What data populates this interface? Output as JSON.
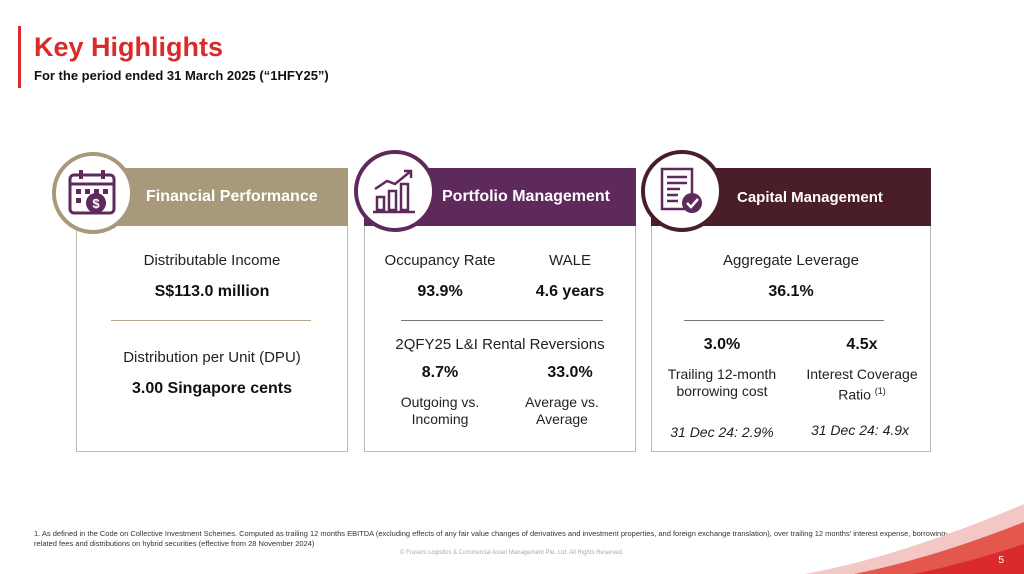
{
  "header": {
    "title": "Key Highlights",
    "subtitle": "For the period ended 31 March 2025 (“1HFY25”)"
  },
  "colors": {
    "brand_red": "#d92b2b",
    "financial": "#a8997a",
    "portfolio": "#5e2a5c",
    "capital": "#4a1e28"
  },
  "financial": {
    "icon": "calendar-dollar-icon",
    "header": "Financial Performance",
    "income_label": "Distributable Income",
    "income_value": "S$113.0 million",
    "dpu_label": "Distribution per Unit (DPU)",
    "dpu_value": "3.00 Singapore cents"
  },
  "portfolio": {
    "icon": "bar-chart-growth-icon",
    "header": "Portfolio Management",
    "occupancy_label": "Occupancy Rate",
    "occupancy_value": "93.9%",
    "wale_label": "WALE",
    "wale_value": "4.6 years",
    "reversions_title": "2QFY25 L&I Rental Reversions",
    "reversion1_value": "8.7%",
    "reversion1_line1": "Outgoing vs.",
    "reversion1_line2": "Incoming",
    "reversion2_value": "33.0%",
    "reversion2_line1": "Average vs.",
    "reversion2_line2": "Average"
  },
  "capital": {
    "icon": "document-check-icon",
    "header": "Capital Management",
    "leverage_label": "Aggregate Leverage",
    "leverage_value": "36.1%",
    "borrow_value": "3.0%",
    "borrow_line1": "Trailing 12-month",
    "borrow_line2": "borrowing cost",
    "borrow_prior": "31 Dec 24: 2.9%",
    "icr_value": "4.5x",
    "icr_line1": "Interest Coverage",
    "icr_line2": "Ratio",
    "icr_note": "(1)",
    "icr_prior": "31 Dec 24: 4.9x"
  },
  "footer": {
    "footnote": "1. As defined in the Code on Collective Investment Schemes. Computed as trailing 12 months EBITDA (excluding effects of any fair value changes of derivatives and investment properties, and foreign exchange translation), over trailing 12 months' interest expense, borrowing-related fees and distributions on hybrid securities (effective from 28 November 2024)",
    "copyright": "© Frasers Logistics & Commercial Asset Management Pte. Ltd. All Rights Reserved.",
    "page": "5"
  }
}
